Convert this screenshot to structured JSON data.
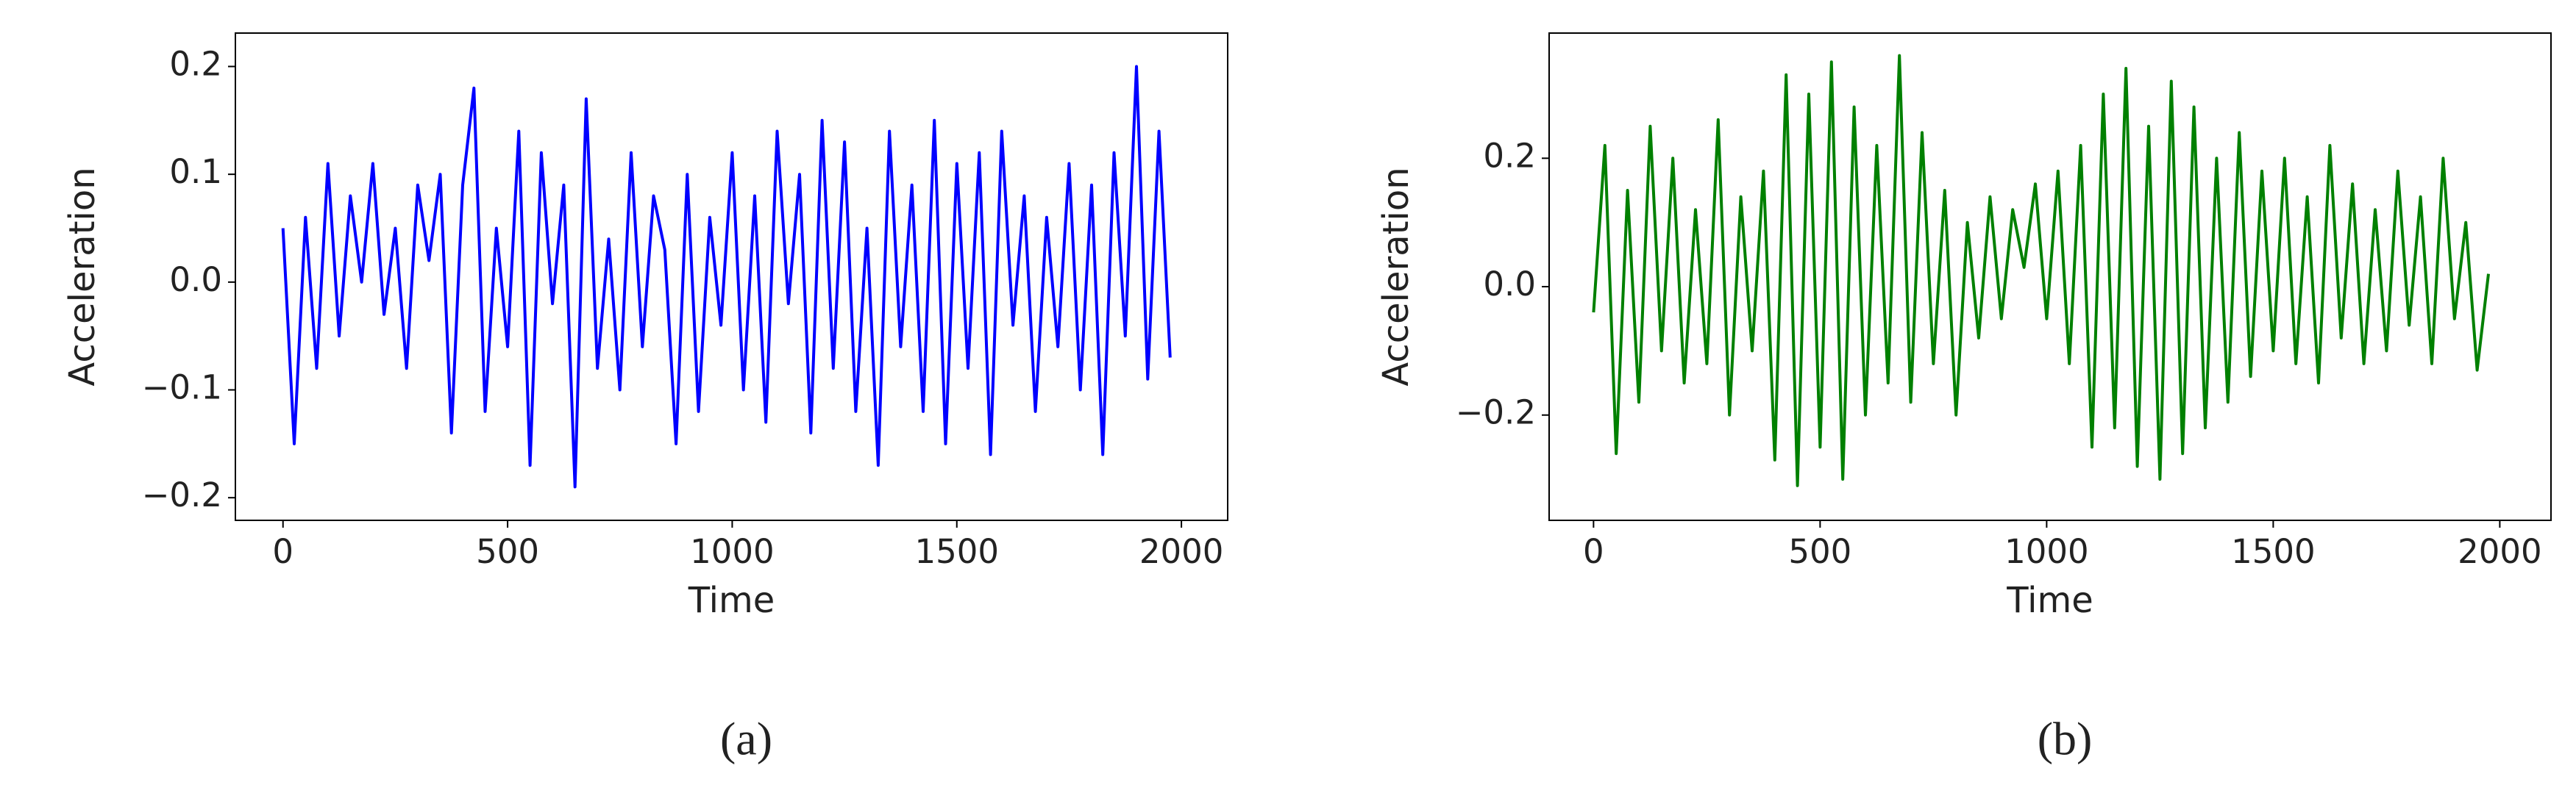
{
  "chart_data": [
    {
      "type": "line",
      "label": "(a)",
      "xlabel": "Time",
      "ylabel": "Acceleration",
      "x": [
        0,
        25,
        50,
        75,
        100,
        125,
        150,
        175,
        200,
        225,
        250,
        275,
        300,
        325,
        350,
        375,
        400,
        425,
        450,
        475,
        500,
        525,
        550,
        575,
        600,
        625,
        650,
        675,
        700,
        725,
        750,
        775,
        800,
        825,
        850,
        875,
        900,
        925,
        950,
        975,
        1000,
        1025,
        1050,
        1075,
        1100,
        1125,
        1150,
        1175,
        1200,
        1225,
        1250,
        1275,
        1300,
        1325,
        1350,
        1375,
        1400,
        1425,
        1450,
        1475,
        1500,
        1525,
        1550,
        1575,
        1600,
        1625,
        1650,
        1675,
        1700,
        1725,
        1750,
        1775,
        1800,
        1825,
        1850,
        1875,
        1900,
        1925,
        1950,
        1975
      ],
      "series": [
        {
          "color": "#0000ff",
          "values": [
            0.05,
            -0.15,
            0.06,
            -0.08,
            0.11,
            -0.05,
            0.08,
            0.0,
            0.11,
            -0.03,
            0.05,
            -0.08,
            0.09,
            0.02,
            0.1,
            -0.14,
            0.09,
            0.18,
            -0.12,
            0.05,
            -0.06,
            0.14,
            -0.17,
            0.12,
            -0.02,
            0.09,
            -0.19,
            0.17,
            -0.08,
            0.04,
            -0.1,
            0.12,
            -0.06,
            0.08,
            0.03,
            -0.15,
            0.1,
            -0.12,
            0.06,
            -0.04,
            0.12,
            -0.1,
            0.08,
            -0.13,
            0.14,
            -0.02,
            0.1,
            -0.14,
            0.15,
            -0.08,
            0.13,
            -0.12,
            0.05,
            -0.17,
            0.14,
            -0.06,
            0.09,
            -0.12,
            0.15,
            -0.15,
            0.11,
            -0.08,
            0.12,
            -0.16,
            0.14,
            -0.04,
            0.08,
            -0.12,
            0.06,
            -0.06,
            0.11,
            -0.1,
            0.09,
            -0.16,
            0.12,
            -0.05,
            0.2,
            -0.09,
            0.14,
            -0.07
          ]
        }
      ],
      "xlim": [
        -106,
        2103
      ],
      "xticks": [
        0,
        500,
        1000,
        1500,
        2000
      ],
      "ylim": [
        -0.221,
        0.231
      ],
      "yticks": [
        {
          "value": -0.2,
          "label": "−0.2"
        },
        {
          "value": -0.1,
          "label": "−0.1"
        },
        {
          "value": 0,
          "label": "0.0"
        },
        0.1,
        0.2
      ]
    },
    {
      "type": "line",
      "label": "(b)",
      "xlabel": "Time",
      "ylabel": "Acceleration",
      "x": [
        0,
        25,
        50,
        75,
        100,
        125,
        150,
        175,
        200,
        225,
        250,
        275,
        300,
        325,
        350,
        375,
        400,
        425,
        450,
        475,
        500,
        525,
        550,
        575,
        600,
        625,
        650,
        675,
        700,
        725,
        750,
        775,
        800,
        825,
        850,
        875,
        900,
        925,
        950,
        975,
        1000,
        1025,
        1050,
        1075,
        1100,
        1125,
        1150,
        1175,
        1200,
        1225,
        1250,
        1275,
        1300,
        1325,
        1350,
        1375,
        1400,
        1425,
        1450,
        1475,
        1500,
        1525,
        1550,
        1575,
        1600,
        1625,
        1650,
        1675,
        1700,
        1725,
        1750,
        1775,
        1800,
        1825,
        1850,
        1875,
        1900,
        1925,
        1950,
        1975
      ],
      "series": [
        {
          "color": "#008000",
          "values": [
            -0.04,
            0.22,
            -0.26,
            0.15,
            -0.18,
            0.25,
            -0.1,
            0.2,
            -0.15,
            0.12,
            -0.12,
            0.26,
            -0.2,
            0.14,
            -0.1,
            0.18,
            -0.27,
            0.33,
            -0.31,
            0.3,
            -0.25,
            0.35,
            -0.3,
            0.28,
            -0.2,
            0.22,
            -0.15,
            0.36,
            -0.18,
            0.24,
            -0.12,
            0.15,
            -0.2,
            0.1,
            -0.08,
            0.14,
            -0.05,
            0.12,
            0.03,
            0.16,
            -0.05,
            0.18,
            -0.12,
            0.22,
            -0.25,
            0.3,
            -0.22,
            0.34,
            -0.28,
            0.25,
            -0.3,
            0.32,
            -0.26,
            0.28,
            -0.22,
            0.2,
            -0.18,
            0.24,
            -0.14,
            0.18,
            -0.1,
            0.2,
            -0.12,
            0.14,
            -0.15,
            0.22,
            -0.08,
            0.16,
            -0.12,
            0.12,
            -0.1,
            0.18,
            -0.06,
            0.14,
            -0.12,
            0.2,
            -0.05,
            0.1,
            -0.13,
            0.02
          ]
        }
      ],
      "xlim": [
        -98,
        2113
      ],
      "xticks": [
        0,
        500,
        1000,
        1500,
        2000
      ],
      "ylim": [
        -0.364,
        0.395
      ],
      "yticks": [
        {
          "value": -0.2,
          "label": "−0.2"
        },
        {
          "value": 0,
          "label": "0.0"
        },
        0.2
      ]
    }
  ]
}
